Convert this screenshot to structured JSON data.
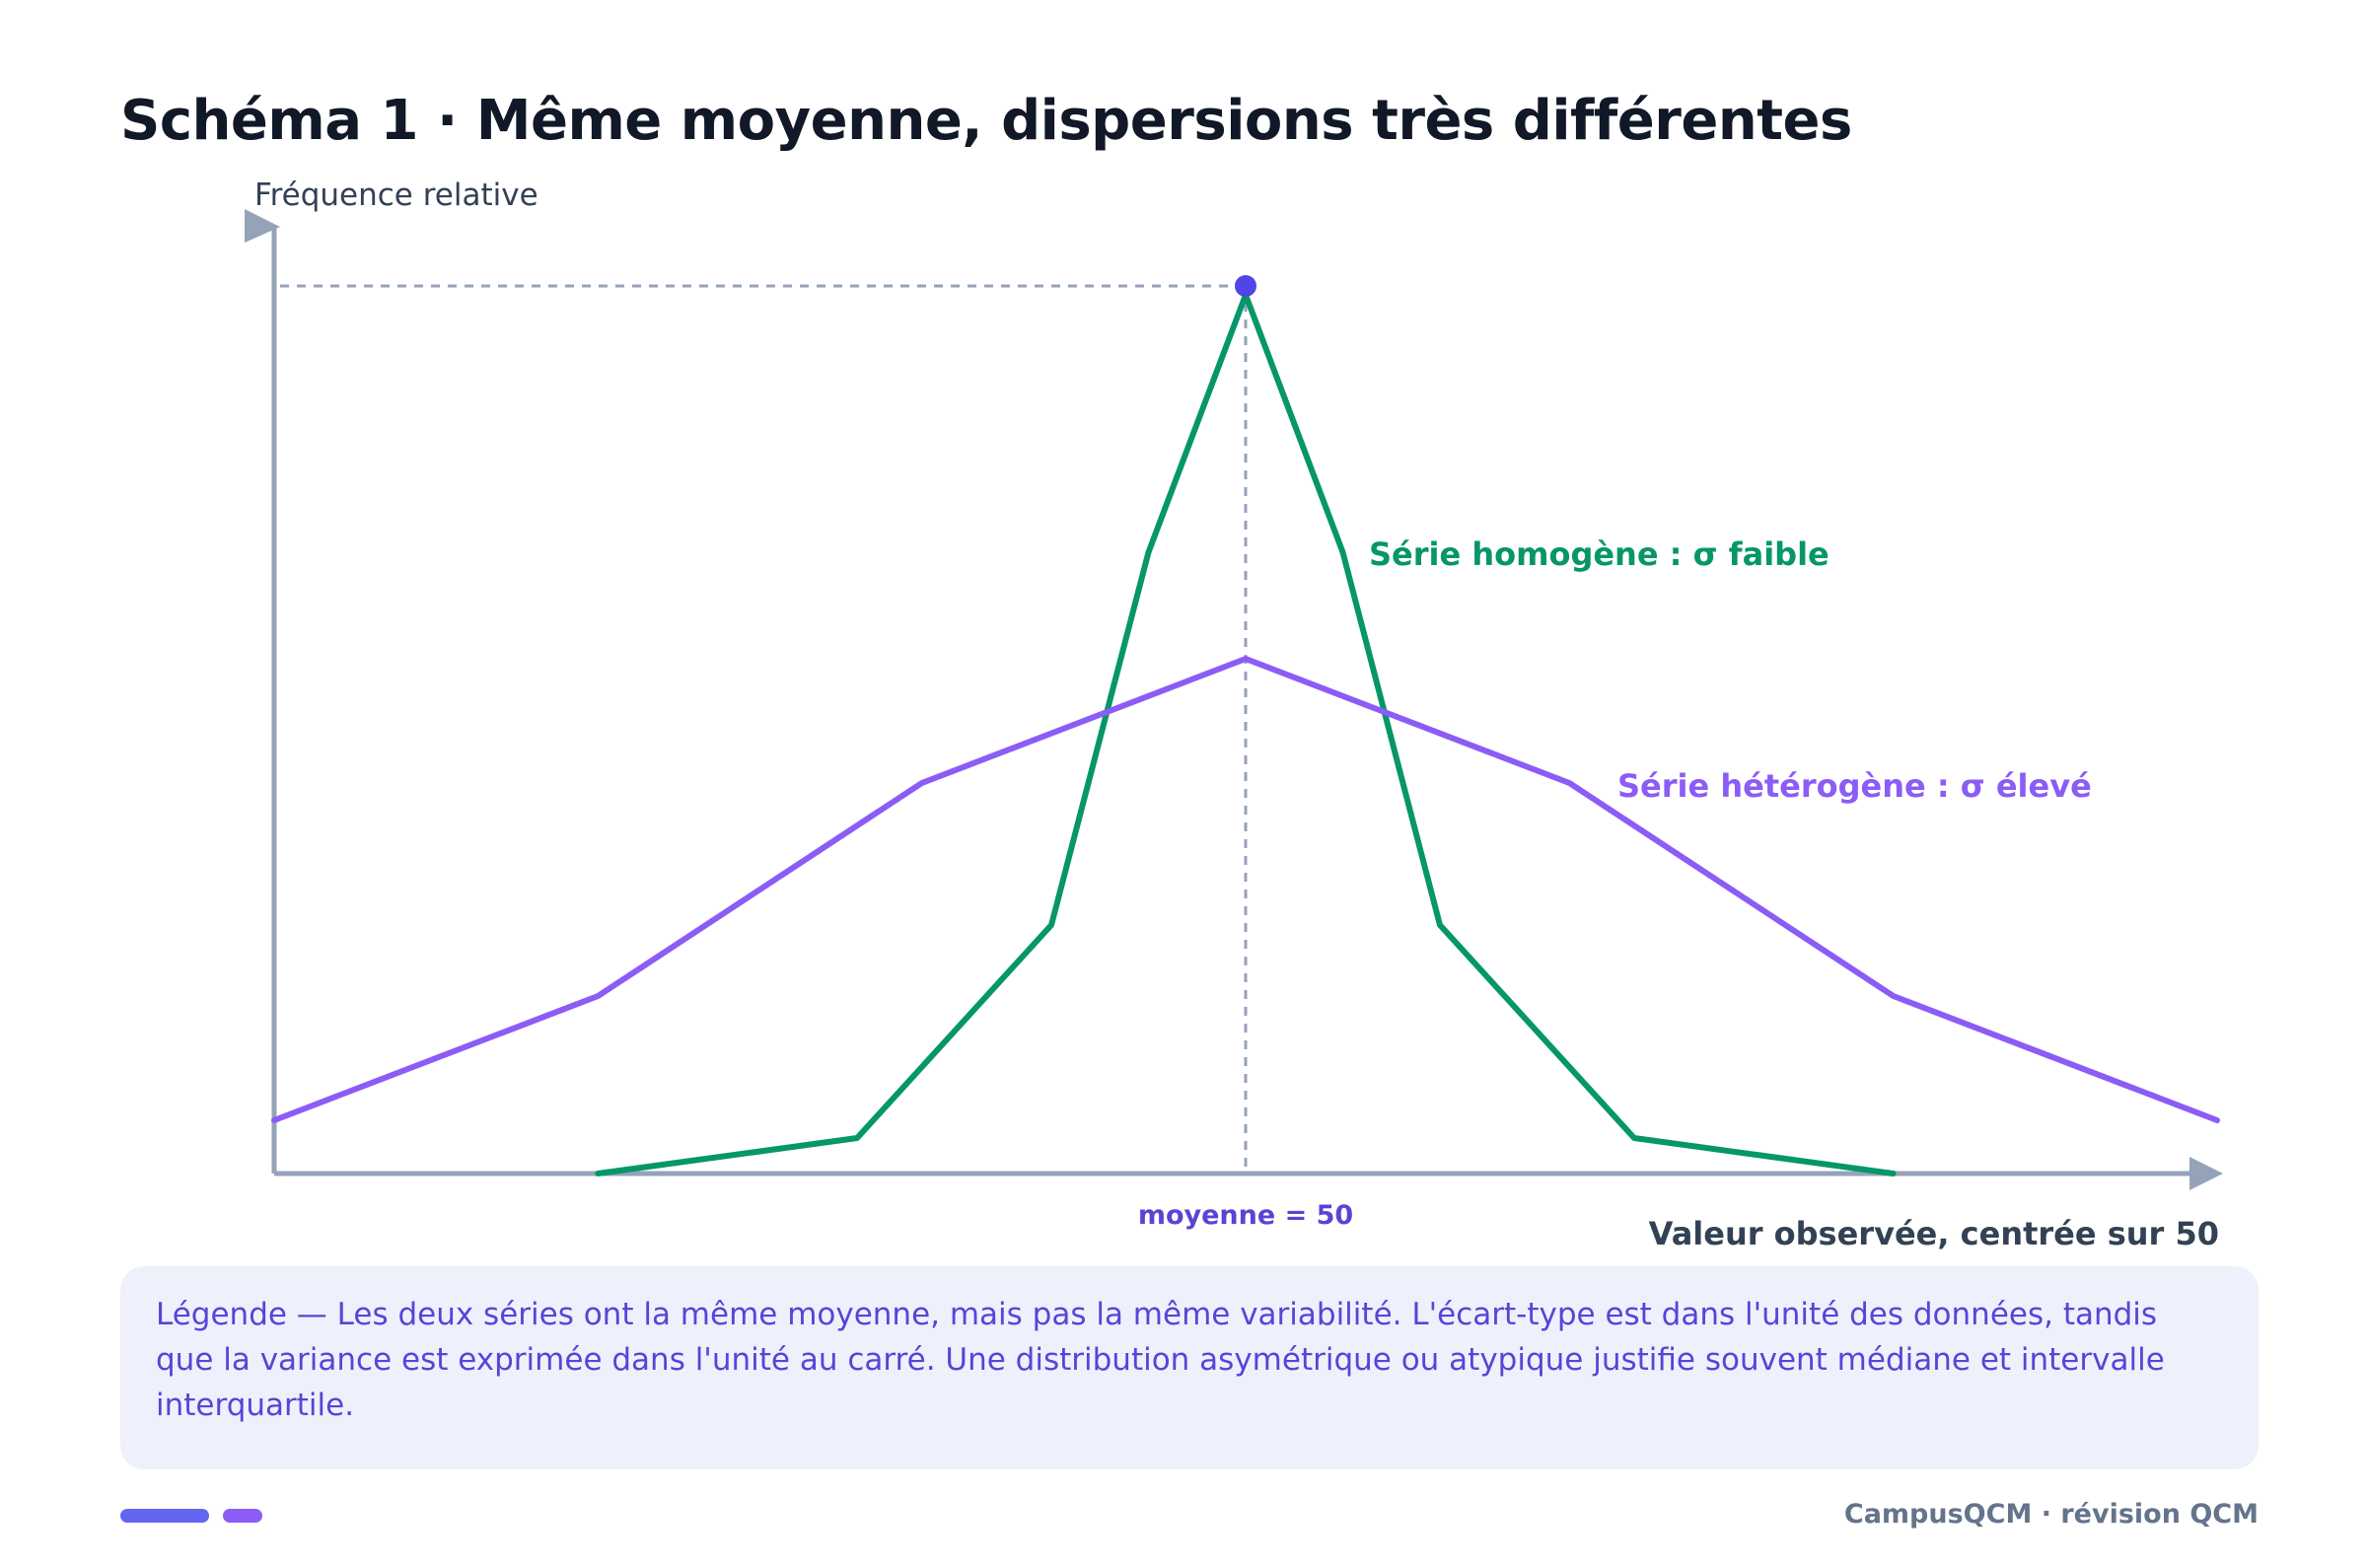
{
  "title": "Schéma 1 · Même moyenne, dispersions très différentes",
  "colors": {
    "axis": "#94a3b8",
    "homogeneous": "#059669",
    "heterogeneous": "#8b5cf6",
    "peak_marker": "#4f46e5",
    "mean_label": "#5b43d6",
    "title": "#111827",
    "legend_bg": "#eef1fc",
    "legend_text": "#5b43d6",
    "footer": "#64748b"
  },
  "chart_data": {
    "type": "line",
    "ylabel": "Fréquence relative",
    "xlabel": "Valeur observée, centrée sur 50",
    "mean_label": "moyenne = 50",
    "x": [
      20,
      25,
      30,
      35,
      40,
      45,
      50,
      55,
      60,
      65,
      70,
      75,
      80
    ],
    "xlim": [
      20,
      80
    ],
    "ylim": [
      0,
      1.0
    ],
    "series": [
      {
        "name": "Série homogène : σ faible",
        "color": "#059669",
        "x": [
          30,
          38,
          44,
          47,
          50,
          53,
          56,
          62,
          70
        ],
        "values": [
          0.0,
          0.04,
          0.28,
          0.7,
          0.99,
          0.7,
          0.28,
          0.04,
          0.0
        ]
      },
      {
        "name": "Série hétérogène : σ élevé",
        "color": "#8b5cf6",
        "x": [
          20,
          30,
          40,
          50,
          60,
          70,
          80
        ],
        "values": [
          0.06,
          0.2,
          0.44,
          0.58,
          0.44,
          0.2,
          0.06
        ]
      }
    ],
    "mean": 50,
    "peak": {
      "x": 50,
      "y": 1.0
    }
  },
  "legend": {
    "text": "Légende — Les deux séries ont la même moyenne, mais pas la même variabilité. L'écart-type est dans l'unité des données, tandis que la variance est exprimée dans l'unité au carré. Une distribution asymétrique ou atypique justifie souvent médiane et intervalle interquartile."
  },
  "footer": {
    "brand": "CampusQCM · révision QCM"
  }
}
